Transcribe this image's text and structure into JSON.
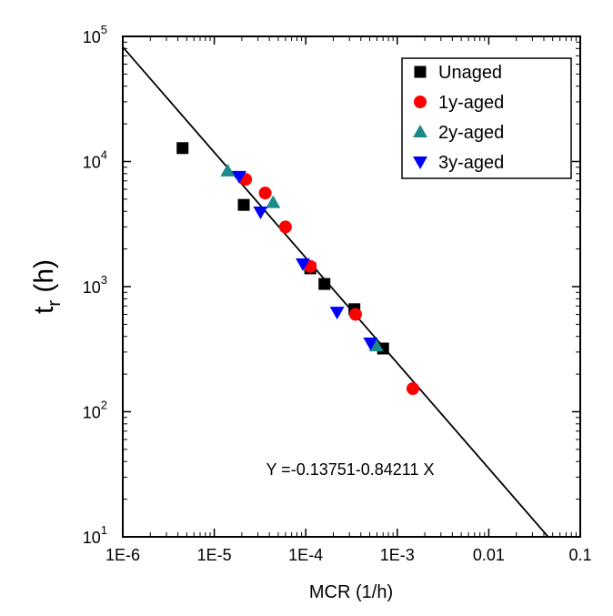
{
  "chart_data": {
    "type": "scatter",
    "xlabel": "MCR (1/h)",
    "ylabel": [
      "t",
      "r",
      " (h)"
    ],
    "xscale": "log",
    "yscale": "log",
    "xlim": [
      1e-06,
      0.1
    ],
    "ylim": [
      10,
      100000
    ],
    "xticks": [
      {
        "value": 1e-06,
        "label": "1E-6"
      },
      {
        "value": 1e-05,
        "label": "1E-5"
      },
      {
        "value": 0.0001,
        "label": "1E-4"
      },
      {
        "value": 0.001,
        "label": "1E-3"
      },
      0.01,
      0.1
    ],
    "yticks": [
      {
        "value": 10,
        "label": "10",
        "exp": "1"
      },
      {
        "value": 100,
        "label": "10",
        "exp": "2"
      },
      {
        "value": 1000,
        "label": "10",
        "exp": "3"
      },
      {
        "value": 10000,
        "label": "10",
        "exp": "4"
      },
      {
        "value": 100000,
        "label": "10",
        "exp": "5"
      }
    ],
    "legend": "upper right",
    "series": [
      {
        "name": "Unaged",
        "color": "#000000",
        "marker": "square",
        "x": [
          4.5e-06,
          2.1e-05,
          0.000112,
          0.00016,
          0.00034,
          0.0007
        ],
        "values": [
          12800,
          4500,
          1400,
          1050,
          660,
          320
        ]
      },
      {
        "name": "1y-aged",
        "color": "#ff0000",
        "marker": "circle",
        "x": [
          2.2e-05,
          3.6e-05,
          6e-05,
          0.000112,
          0.00035,
          0.00148
        ],
        "values": [
          7200,
          5600,
          3000,
          1450,
          600,
          153
        ]
      },
      {
        "name": "2y-aged",
        "color": "#1a8a8a",
        "marker": "triangle-up",
        "x": [
          1.4e-05,
          4.4e-05,
          0.00059
        ],
        "values": [
          8400,
          4700,
          336
        ]
      },
      {
        "name": "3y-aged",
        "color": "#0000ff",
        "marker": "triangle-down",
        "x": [
          1.87e-05,
          3.2e-05,
          9.3e-05,
          0.00022,
          0.00051
        ],
        "values": [
          7600,
          3950,
          1520,
          625,
          354
        ]
      }
    ],
    "annotation": "Y =-0.13751-0.84211 X",
    "fit": {
      "intercept": -0.13751,
      "slope": -0.84211,
      "color": "#000000"
    }
  }
}
